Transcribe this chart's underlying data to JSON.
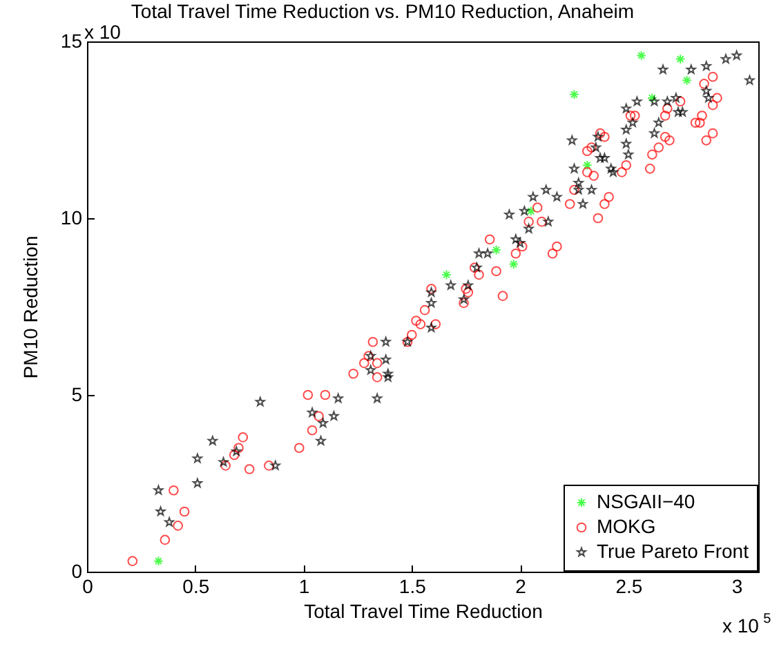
{
  "chart_data": {
    "type": "scatter",
    "title": "Total Travel Time Reduction vs. PM10 Reduction, Anaheim",
    "xlabel": "Total Travel Time Reduction",
    "ylabel": "PM10 Reduction",
    "xlim": [
      0,
      3.1
    ],
    "xticks": [
      0,
      0.5,
      1,
      1.5,
      2,
      2.5,
      3
    ],
    "ylim": [
      0,
      15
    ],
    "yticks": [
      0,
      5,
      10,
      15
    ],
    "annotations": [
      "x 10",
      "x 10$^{5}$"
    ],
    "legend": "bottom right",
    "grid": false,
    "series": [
      {
        "name": "NSGAII−40",
        "color": "#00ff00",
        "marker": "cross",
        "x": [
          0.33,
          2.56,
          2.74,
          2.77,
          2.25,
          2.61,
          2.31,
          2.05,
          1.89,
          1.97,
          1.66
        ],
        "values": [
          0.3,
          14.6,
          14.5,
          13.9,
          13.5,
          13.4,
          11.5,
          10.2,
          9.1,
          8.7,
          8.4
        ]
      },
      {
        "name": "MOKG",
        "color": "#ff0000",
        "marker": "circle",
        "x": [
          0.21,
          0.36,
          0.42,
          0.45,
          0.4,
          0.64,
          0.75,
          0.84,
          0.68,
          0.7,
          0.72,
          0.98,
          1.02,
          1.1,
          1.04,
          1.07,
          1.23,
          1.28,
          1.3,
          1.32,
          1.34,
          1.34,
          1.48,
          1.5,
          1.52,
          1.54,
          1.56,
          1.59,
          1.61,
          1.74,
          1.76,
          1.81,
          1.92,
          1.75,
          1.89,
          1.79,
          1.86,
          1.98,
          2.01,
          2.15,
          2.17,
          2.04,
          2.08,
          2.1,
          2.23,
          2.25,
          2.36,
          2.39,
          2.41,
          2.31,
          2.34,
          2.47,
          2.49,
          2.31,
          2.33,
          2.37,
          2.39,
          2.6,
          2.61,
          2.64,
          2.67,
          2.69,
          2.53,
          2.51,
          2.67,
          2.68,
          2.74,
          2.81,
          2.83,
          2.84,
          2.86,
          2.89,
          2.89,
          2.85,
          2.91,
          2.89
        ],
        "values": [
          0.3,
          0.9,
          1.3,
          1.7,
          2.3,
          3.0,
          2.9,
          3.0,
          3.3,
          3.5,
          3.8,
          3.5,
          5.0,
          5.0,
          4.0,
          4.4,
          5.6,
          5.9,
          6.1,
          6.5,
          5.5,
          5.9,
          6.5,
          6.7,
          7.1,
          7.0,
          7.4,
          8.0,
          7.0,
          7.6,
          7.9,
          8.4,
          7.8,
          8.0,
          8.5,
          8.6,
          9.4,
          9.0,
          9.2,
          9.0,
          9.2,
          9.9,
          10.3,
          9.9,
          10.4,
          10.8,
          10.0,
          10.4,
          10.6,
          11.3,
          11.2,
          11.3,
          11.5,
          11.9,
          12.0,
          12.4,
          12.3,
          11.4,
          11.8,
          12.0,
          12.3,
          12.2,
          12.9,
          12.9,
          12.9,
          13.1,
          13.3,
          12.7,
          12.7,
          12.9,
          12.2,
          12.4,
          14.0,
          13.8,
          13.4,
          13.2
        ]
      },
      {
        "name": "True Pareto Front",
        "color": "#000000",
        "marker": "star",
        "x": [
          0.33,
          0.34,
          0.38,
          0.51,
          0.51,
          0.58,
          0.63,
          0.69,
          0.8,
          0.87,
          1.04,
          1.08,
          1.09,
          1.14,
          1.16,
          1.31,
          1.31,
          1.38,
          1.39,
          1.39,
          1.38,
          1.34,
          1.48,
          1.59,
          1.59,
          1.59,
          1.68,
          1.74,
          1.76,
          1.8,
          1.81,
          1.85,
          1.98,
          2.0,
          2.04,
          2.13,
          1.95,
          2.02,
          2.06,
          2.12,
          2.17,
          2.29,
          2.27,
          2.33,
          2.27,
          2.25,
          2.42,
          2.43,
          2.37,
          2.39,
          2.24,
          2.35,
          2.36,
          2.49,
          2.5,
          2.49,
          2.62,
          2.64,
          2.52,
          2.49,
          2.54,
          2.62,
          2.68,
          2.72,
          2.73,
          2.75,
          2.66,
          2.79,
          2.86,
          2.86,
          2.87,
          2.95,
          3.0,
          3.06
        ],
        "values": [
          2.3,
          1.7,
          1.4,
          2.5,
          3.2,
          3.7,
          3.1,
          3.4,
          4.8,
          3.0,
          4.5,
          3.7,
          4.2,
          4.4,
          4.9,
          6.1,
          5.7,
          6.0,
          5.6,
          5.5,
          6.5,
          4.9,
          6.5,
          7.9,
          7.6,
          6.9,
          8.1,
          7.7,
          8.1,
          8.6,
          9.0,
          9.0,
          9.4,
          9.3,
          9.7,
          9.9,
          10.1,
          10.2,
          10.6,
          10.8,
          10.6,
          10.4,
          10.8,
          10.8,
          11.0,
          11.4,
          11.4,
          11.3,
          11.7,
          11.7,
          12.2,
          12.0,
          12.3,
          12.1,
          11.8,
          12.5,
          12.4,
          12.7,
          12.7,
          13.1,
          13.3,
          13.3,
          13.3,
          13.4,
          13.0,
          13.0,
          14.2,
          14.2,
          14.3,
          13.6,
          13.4,
          14.5,
          14.6,
          13.9
        ]
      }
    ]
  }
}
